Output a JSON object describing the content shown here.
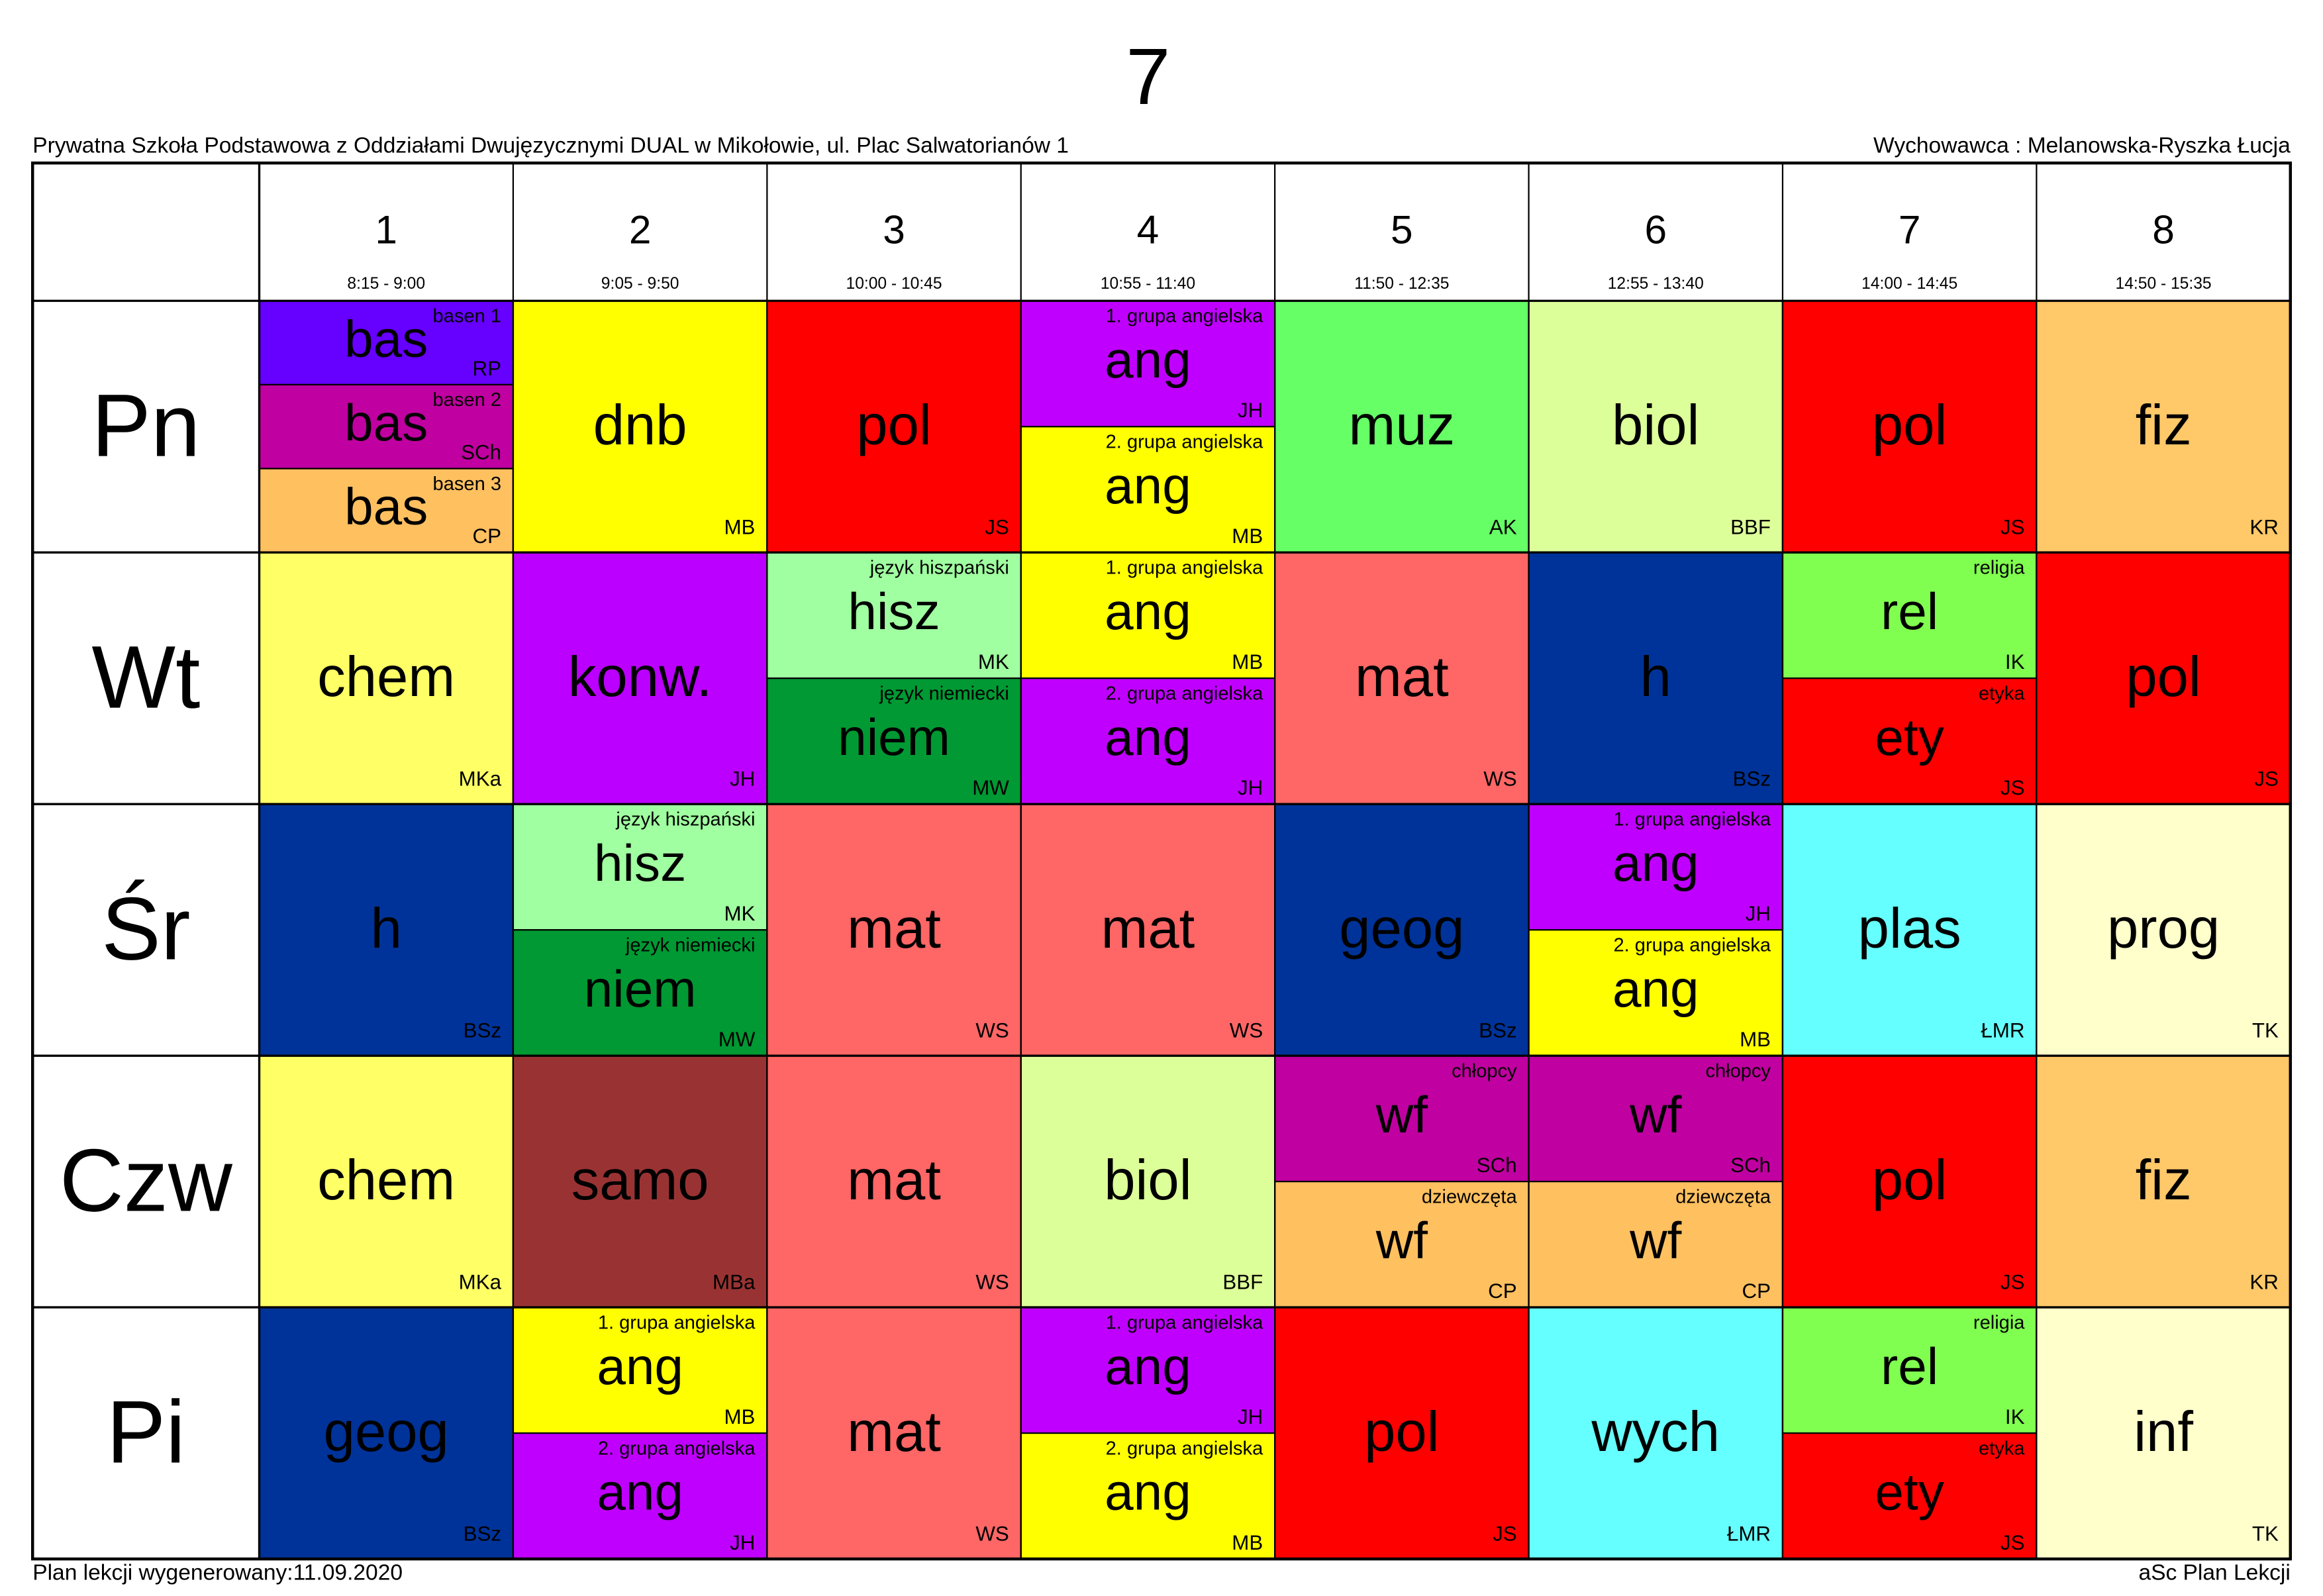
{
  "title": "7",
  "school": "Prywatna Szkoła Podstawowa z Oddziałami Dwujęzycznymi DUAL w Mikołowie, ul. Plac Salwatorianów 1",
  "teacher": "Wychowawca : Melanowska-Ryszka Łucja",
  "periods": [
    {
      "number": 1,
      "time": "8:15 - 9:00"
    },
    {
      "number": 2,
      "time": "9:05 - 9:50"
    },
    {
      "number": 3,
      "time": "10:00 - 10:45"
    },
    {
      "number": 4,
      "time": "10:55 - 11:40"
    },
    {
      "number": 5,
      "time": "11:50 - 12:35"
    },
    {
      "number": 6,
      "time": "12:55 - 13:40"
    },
    {
      "number": 7,
      "time": "14:00 - 14:45"
    },
    {
      "number": 8,
      "time": "14:50 - 15:35"
    }
  ],
  "days": [
    {
      "label": "Pn",
      "lessons": [
        [
          {
            "group": "basen 1",
            "subject": "bas",
            "teacher": "RP",
            "color": "#6600ff"
          },
          {
            "group": "basen 2",
            "subject": "bas",
            "teacher": "SCh",
            "color": "#c000a0"
          },
          {
            "group": "basen 3",
            "subject": "bas",
            "teacher": "CP",
            "color": "#ffc060"
          }
        ],
        [
          {
            "subject": "dnb",
            "teacher": "MB",
            "color": "#ffff00"
          }
        ],
        [
          {
            "subject": "pol",
            "teacher": "JS",
            "color": "#ff0000"
          }
        ],
        [
          {
            "group": "1. grupa angielska",
            "subject": "ang",
            "teacher": "JH",
            "color": "#c000ff"
          },
          {
            "group": "2. grupa angielska",
            "subject": "ang",
            "teacher": "MB",
            "color": "#ffff00"
          }
        ],
        [
          {
            "subject": "muz",
            "teacher": "AK",
            "color": "#66ff66"
          }
        ],
        [
          {
            "subject": "biol",
            "teacher": "BBF",
            "color": "#ddff99"
          }
        ],
        [
          {
            "subject": "pol",
            "teacher": "JS",
            "color": "#ff0000"
          }
        ],
        [
          {
            "subject": "fiz",
            "teacher": "KR",
            "color": "#ffc868"
          }
        ]
      ]
    },
    {
      "label": "Wt",
      "lessons": [
        [
          {
            "subject": "chem",
            "teacher": "MKa",
            "color": "#ffff66"
          }
        ],
        [
          {
            "subject": "konw.",
            "teacher": "JH",
            "color": "#bb00ff"
          }
        ],
        [
          {
            "group": "język hiszpański",
            "subject": "hisz",
            "teacher": "MK",
            "color": "#a0ffa0"
          },
          {
            "group": "język niemiecki",
            "subject": "niem",
            "teacher": "MW",
            "color": "#009933"
          }
        ],
        [
          {
            "group": "1. grupa angielska",
            "subject": "ang",
            "teacher": "MB",
            "color": "#ffff00"
          },
          {
            "group": "2. grupa angielska",
            "subject": "ang",
            "teacher": "JH",
            "color": "#c000ff"
          }
        ],
        [
          {
            "subject": "mat",
            "teacher": "WS",
            "color": "#ff6666"
          }
        ],
        [
          {
            "subject": "h",
            "teacher": "BSz",
            "color": "#003399"
          }
        ],
        [
          {
            "group": "religia",
            "subject": "rel",
            "teacher": "IK",
            "color": "#80ff50"
          },
          {
            "group": "etyka",
            "subject": "ety",
            "teacher": "JS",
            "color": "#ff0000"
          }
        ],
        [
          {
            "subject": "pol",
            "teacher": "JS",
            "color": "#ff0000"
          }
        ]
      ]
    },
    {
      "label": "Śr",
      "lessons": [
        [
          {
            "subject": "h",
            "teacher": "BSz",
            "color": "#003399"
          }
        ],
        [
          {
            "group": "język hiszpański",
            "subject": "hisz",
            "teacher": "MK",
            "color": "#a0ffa0"
          },
          {
            "group": "język niemiecki",
            "subject": "niem",
            "teacher": "MW",
            "color": "#009933"
          }
        ],
        [
          {
            "subject": "mat",
            "teacher": "WS",
            "color": "#ff6666"
          }
        ],
        [
          {
            "subject": "mat",
            "teacher": "WS",
            "color": "#ff6666"
          }
        ],
        [
          {
            "subject": "geog",
            "teacher": "BSz",
            "color": "#003399"
          }
        ],
        [
          {
            "group": "1. grupa angielska",
            "subject": "ang",
            "teacher": "JH",
            "color": "#c000ff"
          },
          {
            "group": "2. grupa angielska",
            "subject": "ang",
            "teacher": "MB",
            "color": "#ffff00"
          }
        ],
        [
          {
            "subject": "plas",
            "teacher": "ŁMR",
            "color": "#66ffff"
          }
        ],
        [
          {
            "subject": "prog",
            "teacher": "TK",
            "color": "#ffffcc"
          }
        ]
      ]
    },
    {
      "label": "Czw",
      "lessons": [
        [
          {
            "subject": "chem",
            "teacher": "MKa",
            "color": "#ffff66"
          }
        ],
        [
          {
            "subject": "samo",
            "teacher": "MBa",
            "color": "#993333"
          }
        ],
        [
          {
            "subject": "mat",
            "teacher": "WS",
            "color": "#ff6666"
          }
        ],
        [
          {
            "subject": "biol",
            "teacher": "BBF",
            "color": "#ddff99"
          }
        ],
        [
          {
            "group": "chłopcy",
            "subject": "wf",
            "teacher": "SCh",
            "color": "#c000a0"
          },
          {
            "group": "dziewczęta",
            "subject": "wf",
            "teacher": "CP",
            "color": "#ffc060"
          }
        ],
        [
          {
            "group": "chłopcy",
            "subject": "wf",
            "teacher": "SCh",
            "color": "#c000a0"
          },
          {
            "group": "dziewczęta",
            "subject": "wf",
            "teacher": "CP",
            "color": "#ffc060"
          }
        ],
        [
          {
            "subject": "pol",
            "teacher": "JS",
            "color": "#ff0000"
          }
        ],
        [
          {
            "subject": "fiz",
            "teacher": "KR",
            "color": "#ffc868"
          }
        ]
      ]
    },
    {
      "label": "Pi",
      "lessons": [
        [
          {
            "subject": "geog",
            "teacher": "BSz",
            "color": "#003399"
          }
        ],
        [
          {
            "group": "1. grupa angielska",
            "subject": "ang",
            "teacher": "MB",
            "color": "#ffff00"
          },
          {
            "group": "2. grupa angielska",
            "subject": "ang",
            "teacher": "JH",
            "color": "#c000ff"
          }
        ],
        [
          {
            "subject": "mat",
            "teacher": "WS",
            "color": "#ff6666"
          }
        ],
        [
          {
            "group": "1. grupa angielska",
            "subject": "ang",
            "teacher": "JH",
            "color": "#c000ff"
          },
          {
            "group": "2. grupa angielska",
            "subject": "ang",
            "teacher": "MB",
            "color": "#ffff00"
          }
        ],
        [
          {
            "subject": "pol",
            "teacher": "JS",
            "color": "#ff0000"
          }
        ],
        [
          {
            "subject": "wych",
            "teacher": "ŁMR",
            "color": "#66ffff"
          }
        ],
        [
          {
            "group": "religia",
            "subject": "rel",
            "teacher": "IK",
            "color": "#80ff50"
          },
          {
            "group": "etyka",
            "subject": "ety",
            "teacher": "JS",
            "color": "#ff0000"
          }
        ],
        [
          {
            "subject": "inf",
            "teacher": "TK",
            "color": "#ffffcc"
          }
        ]
      ]
    }
  ],
  "footer": {
    "generated": "Plan lekcji wygenerowany:11.09.2020",
    "software": "aSc Plan Lekcji"
  }
}
